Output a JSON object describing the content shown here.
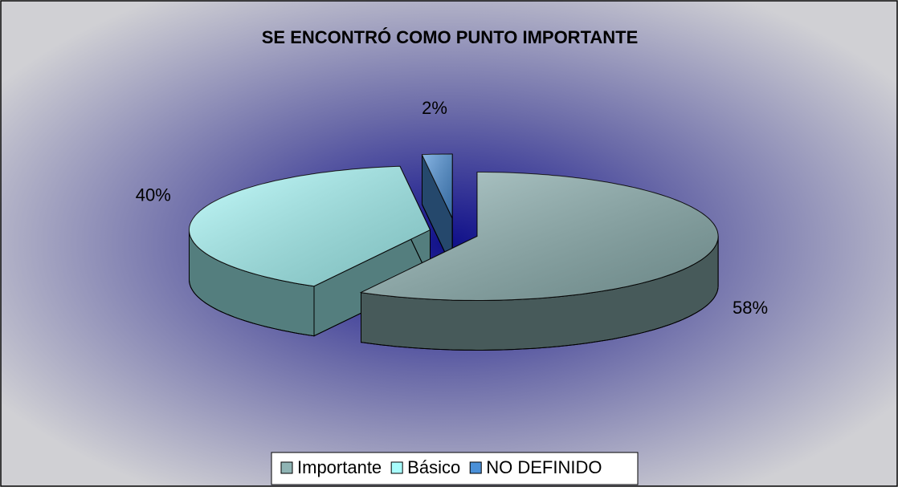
{
  "chart_data": {
    "type": "pie3d",
    "title": "SE ENCONTRÓ COMO PUNTO IMPORTANTE",
    "categories": [
      "Importante",
      "Básico",
      "NO DEFINIDO"
    ],
    "values": [
      58,
      40,
      2
    ],
    "value_labels": [
      "58%",
      "40%",
      "2%"
    ],
    "colors": [
      "#8fb4b4",
      "#a8fcfc",
      "#4a90d8"
    ],
    "legend": "bottom"
  }
}
